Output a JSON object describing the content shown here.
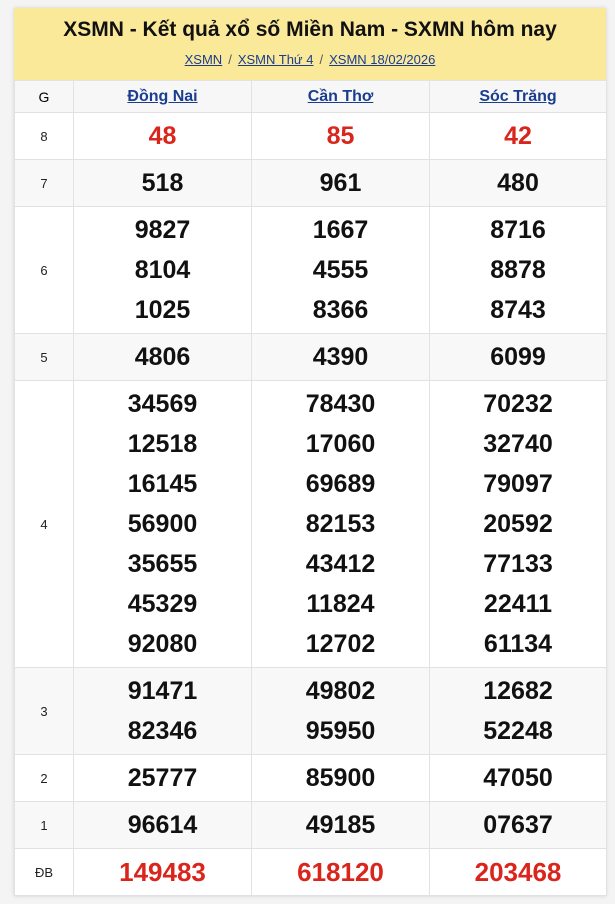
{
  "header": {
    "title": "XSMN - Kết quả xổ số Miền Nam - SXMN hôm nay",
    "breadcrumb": [
      "XSMN",
      "XSMN Thứ 4",
      "XSMN 18/02/2026"
    ],
    "separator": "/"
  },
  "table": {
    "g_header": "G",
    "provinces": [
      "Đồng Nai",
      "Cần Thơ",
      "Sóc Trăng"
    ],
    "rows": [
      {
        "g": "8",
        "style": "red",
        "cols": [
          [
            "48"
          ],
          [
            "85"
          ],
          [
            "42"
          ]
        ]
      },
      {
        "g": "7",
        "cols": [
          [
            "518"
          ],
          [
            "961"
          ],
          [
            "480"
          ]
        ]
      },
      {
        "g": "6",
        "cols": [
          [
            "9827",
            "8104",
            "1025"
          ],
          [
            "1667",
            "4555",
            "8366"
          ],
          [
            "8716",
            "8878",
            "8743"
          ]
        ]
      },
      {
        "g": "5",
        "cols": [
          [
            "4806"
          ],
          [
            "4390"
          ],
          [
            "6099"
          ]
        ]
      },
      {
        "g": "4",
        "cols": [
          [
            "34569",
            "12518",
            "16145",
            "56900",
            "35655",
            "45329",
            "92080"
          ],
          [
            "78430",
            "17060",
            "69689",
            "82153",
            "43412",
            "11824",
            "12702"
          ],
          [
            "70232",
            "32740",
            "79097",
            "20592",
            "77133",
            "22411",
            "61134"
          ]
        ]
      },
      {
        "g": "3",
        "cols": [
          [
            "91471",
            "82346"
          ],
          [
            "49802",
            "95950"
          ],
          [
            "12682",
            "52248"
          ]
        ]
      },
      {
        "g": "2",
        "cols": [
          [
            "25777"
          ],
          [
            "85900"
          ],
          [
            "47050"
          ]
        ]
      },
      {
        "g": "1",
        "cols": [
          [
            "96614"
          ],
          [
            "49185"
          ],
          [
            "07637"
          ]
        ]
      },
      {
        "g": "ĐB",
        "style": "red",
        "cols": [
          [
            "149483"
          ],
          [
            "618120"
          ],
          [
            "203468"
          ]
        ]
      }
    ]
  },
  "colors": {
    "header_bg": "#fbe99a",
    "link": "#1a3d8f",
    "highlight": "#d9251c"
  }
}
